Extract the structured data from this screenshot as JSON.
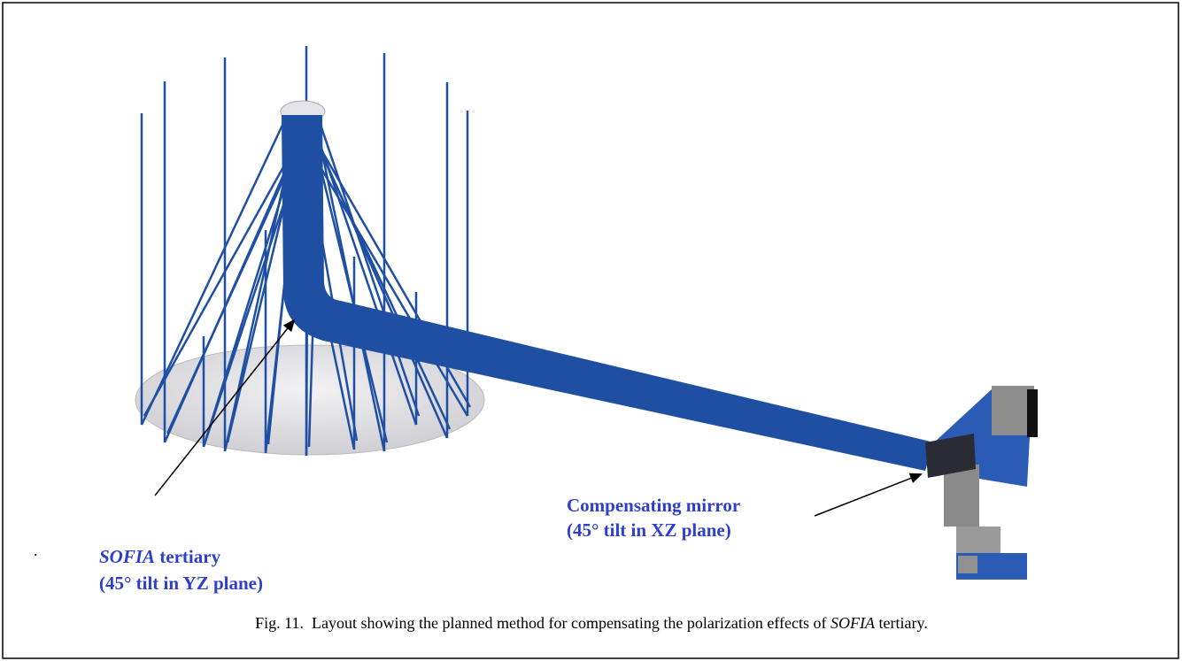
{
  "figure": {
    "stray_mark": ".",
    "annotations": [
      {
        "italic": "SOFIA",
        "rest": " tertiary",
        "line2": "(45° tilt in YZ plane)"
      },
      {
        "line1": "Compensating mirror",
        "line2": "(45° tilt in XZ plane)"
      }
    ],
    "caption": {
      "prefix": "Fig. 11.  Layout showing the planned method for compensating the polarization effects of ",
      "italic": "SOFIA",
      "suffix": " tertiary."
    }
  }
}
